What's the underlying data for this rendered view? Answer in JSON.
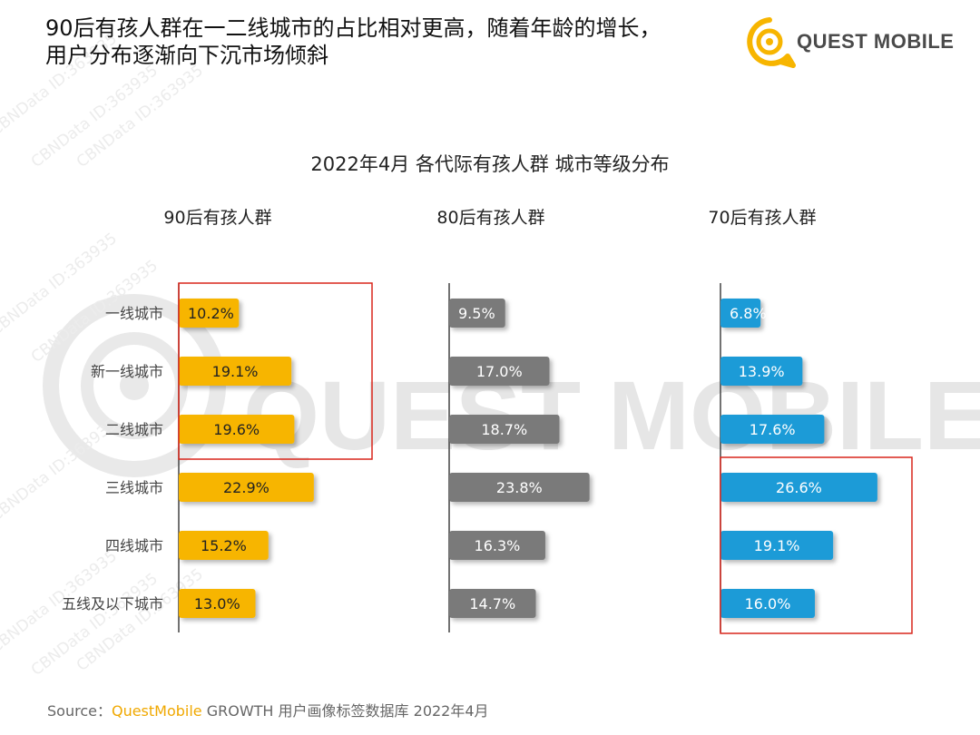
{
  "headline": {
    "line1": "90后有孩人群在一二线城市的占比相对更高，随着年龄的增长，",
    "line2": "用户分布逐渐向下沉市场倾斜"
  },
  "logo": {
    "text": "QUEST MOBILE",
    "icon": "questmobile-logo-icon"
  },
  "watermark": {
    "big_text": "QUEST MOBILE",
    "small_text": "CBNData ID:363935"
  },
  "source": {
    "prefix": "Source：",
    "brand": "QuestMobile",
    "rest": " GROWTH 用户画像标签数据库 2022年4月"
  },
  "chart_data": {
    "type": "bar",
    "orientation": "horizontal",
    "title": "2022年4月 各代际有孩人群 城市等级分布",
    "categories": [
      "一线城市",
      "新一线城市",
      "二线城市",
      "三线城市",
      "四线城市",
      "五线及以下城市"
    ],
    "series": [
      {
        "name": "90后有孩人群",
        "values": [
          10.2,
          19.1,
          19.6,
          22.9,
          15.2,
          13.0
        ],
        "labels": [
          "10.2%",
          "19.1%",
          "19.6%",
          "22.9%",
          "15.2%",
          "13.0%"
        ],
        "color": "#f7b500",
        "highlight_categories": [
          0,
          2
        ]
      },
      {
        "name": "80后有孩人群",
        "values": [
          9.5,
          17.0,
          18.7,
          23.8,
          16.3,
          14.7
        ],
        "labels": [
          "9.5%",
          "17.0%",
          "18.7%",
          "23.8%",
          "16.3%",
          "14.7%"
        ],
        "color": "#7a7a7a"
      },
      {
        "name": "70后有孩人群",
        "values": [
          6.8,
          13.9,
          17.6,
          26.6,
          19.1,
          16.0
        ],
        "labels": [
          "6.8%",
          "13.9%",
          "17.6%",
          "26.6%",
          "19.1%",
          "16.0%"
        ],
        "color": "#1a9bd7",
        "highlight_categories": [
          3,
          5
        ]
      }
    ],
    "highlight_color": "#d9261c"
  }
}
